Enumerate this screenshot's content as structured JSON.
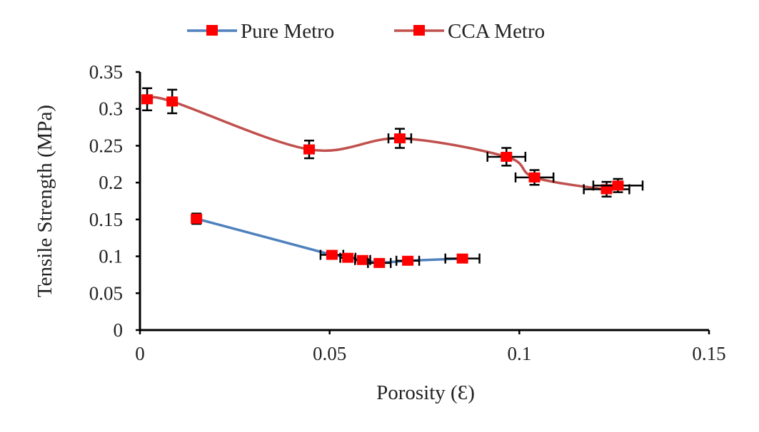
{
  "chart_data": {
    "type": "scatter",
    "title": "",
    "xlabel": "Porosity (Ɛ)",
    "ylabel": "Tensile Strength (MPa)",
    "xlim": [
      0,
      0.15
    ],
    "ylim": [
      0,
      0.35
    ],
    "xticks": [
      "0",
      "0.05",
      "0.1",
      "0.15"
    ],
    "yticks": [
      "0",
      "0.05",
      "0.1",
      "0.15",
      "0.2",
      "0.25",
      "0.3",
      "0.35"
    ],
    "grid": false,
    "legend_placement": "top",
    "marker_color": "#ff0000",
    "series": [
      {
        "name": "Pure Metro",
        "color": "#4f81bd",
        "smooth": false,
        "x": [
          0.0149,
          0.0506,
          0.0548,
          0.0587,
          0.0631,
          0.0706,
          0.085
        ],
        "y": [
          0.151,
          0.102,
          0.098,
          0.095,
          0.091,
          0.094,
          0.097
        ],
        "yerr": [
          0.007,
          0.004,
          0.004,
          0.004,
          0.005,
          0.003,
          0.003
        ],
        "xerr": [
          0,
          0.003,
          0.002,
          0.002,
          0.003,
          0.003,
          0.0045
        ]
      },
      {
        "name": "CCA Metro",
        "color": "#c0504d",
        "smooth": true,
        "x": [
          0.0019,
          0.0085,
          0.0446,
          0.0685,
          0.0966,
          0.104,
          0.123,
          0.126
        ],
        "y": [
          0.313,
          0.31,
          0.245,
          0.26,
          0.235,
          0.207,
          0.191,
          0.196
        ],
        "yerr": [
          0.015,
          0.016,
          0.012,
          0.013,
          0.012,
          0.01,
          0.01,
          0.009
        ],
        "xerr": [
          0,
          0,
          0.0012,
          0.003,
          0.005,
          0.005,
          0.006,
          0.0065
        ]
      }
    ]
  }
}
